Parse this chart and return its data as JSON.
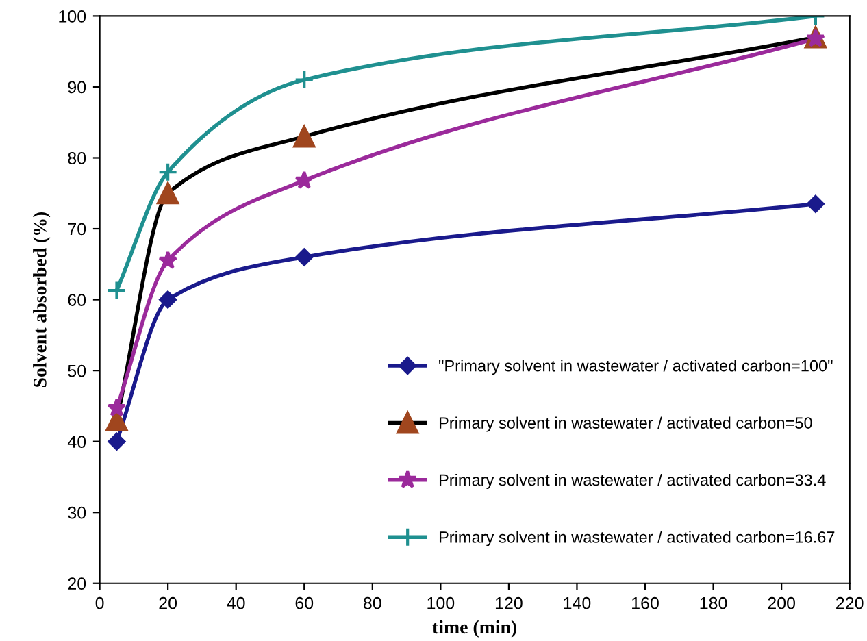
{
  "chart_data": {
    "type": "line",
    "xlabel": "time (min)",
    "ylabel": "Solvent absorbed (%)",
    "xlim": [
      0,
      220
    ],
    "xticks": [
      0,
      20,
      40,
      60,
      80,
      100,
      120,
      140,
      160,
      180,
      200,
      220
    ],
    "ylim": [
      20,
      100
    ],
    "yticks": [
      20,
      30,
      40,
      50,
      60,
      70,
      80,
      90,
      100
    ],
    "grid": false,
    "legend": "bottom right",
    "x": [
      5,
      20,
      60,
      210
    ],
    "series": [
      {
        "name": "\"Primary solvent in wastewater / activated carbon=100\"",
        "color": "#1a1a8c",
        "marker": "diamond",
        "values": [
          40,
          60,
          66,
          73.5
        ]
      },
      {
        "name": "Primary solvent in wastewater / activated carbon=50",
        "color": "#000000",
        "colors": [
          "#a0461e",
          "#a0461e",
          "#a0461e",
          "#a0461e"
        ],
        "marker": "triangle",
        "values": [
          43,
          75,
          83,
          97
        ]
      },
      {
        "name": "Primary solvent in wastewater / activated carbon=33.4",
        "color": "#9b2a9b",
        "marker": "star",
        "values": [
          44.7,
          65.5,
          76.8,
          96.8
        ]
      },
      {
        "name": "Primary solvent in wastewater / activated carbon=16.67",
        "color": "#1f9090",
        "marker": "cross",
        "values": [
          61.3,
          78,
          91,
          100
        ]
      }
    ]
  }
}
